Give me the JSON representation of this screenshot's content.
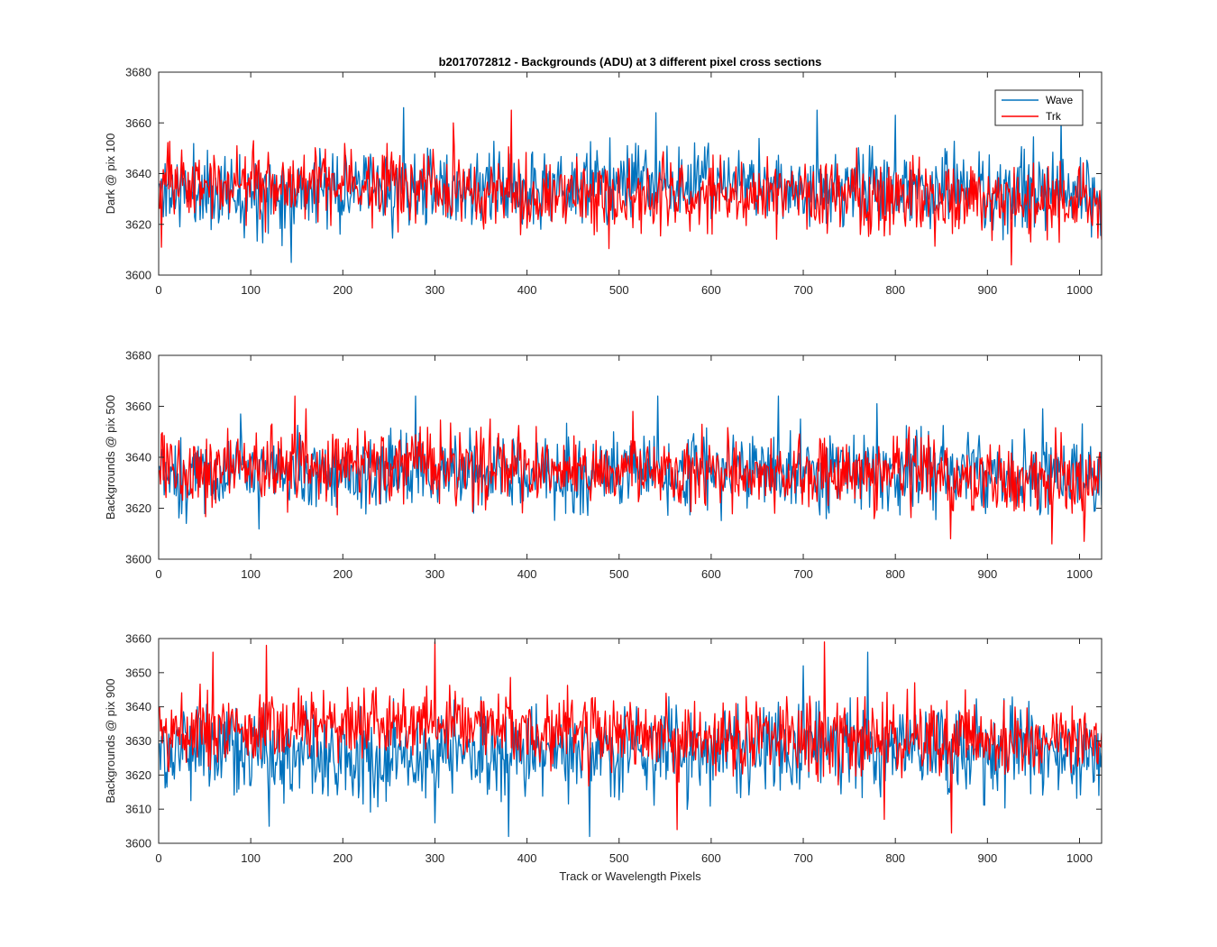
{
  "figure": {
    "title": "b2017072812 - Backgrounds (ADU) at 3 different pixel cross sections",
    "xlabel": "Track or Wavelength Pixels"
  },
  "colors": {
    "wave": "#0072BD",
    "trk": "#FF0000",
    "axis": "#262626",
    "background": "#FFFFFF"
  },
  "legend": {
    "placement": "top-right of first panel",
    "entries": [
      {
        "key": "wave",
        "label": "Wave"
      },
      {
        "key": "trk",
        "label": "Trk"
      }
    ]
  },
  "chart_data": [
    {
      "type": "line",
      "ylabel": "Dark @ pix 100",
      "xlim": [
        0,
        1024
      ],
      "ylim": [
        3600,
        3680
      ],
      "x_ticks": [
        0,
        100,
        200,
        300,
        400,
        500,
        600,
        700,
        800,
        900,
        1000
      ],
      "y_ticks": [
        3600,
        3620,
        3640,
        3660,
        3680
      ],
      "grid": false,
      "n_points": 1024,
      "series": [
        {
          "key": "wave",
          "name": "Wave",
          "trend": [
            [
              0,
              3633
            ],
            [
              200,
              3634
            ],
            [
              400,
              3633
            ],
            [
              500,
              3637
            ],
            [
              700,
              3635
            ],
            [
              900,
              3633
            ],
            [
              1024,
              3631
            ]
          ],
          "noise": 7.5,
          "seed": 11,
          "extremes": [
            [
              144,
              3605
            ],
            [
              266,
              3666
            ],
            [
              540,
              3664
            ],
            [
              715,
              3665
            ],
            [
              800,
              3663
            ],
            [
              1013,
              3615
            ],
            [
              980,
              3662
            ]
          ]
        },
        {
          "key": "trk",
          "name": "Trk",
          "trend": [
            [
              0,
              3637
            ],
            [
              300,
              3635
            ],
            [
              500,
              3631
            ],
            [
              700,
              3632
            ],
            [
              900,
              3629
            ],
            [
              1024,
              3627
            ]
          ],
          "noise": 7,
          "seed": 23,
          "extremes": [
            [
              3,
              3611
            ],
            [
              383,
              3665
            ],
            [
              320,
              3660
            ],
            [
              926,
              3604
            ],
            [
              260,
              3617
            ]
          ]
        }
      ]
    },
    {
      "type": "line",
      "ylabel": "Backgrounds @ pix 500",
      "xlim": [
        0,
        1024
      ],
      "ylim": [
        3600,
        3680
      ],
      "x_ticks": [
        0,
        100,
        200,
        300,
        400,
        500,
        600,
        700,
        800,
        900,
        1000
      ],
      "y_ticks": [
        3600,
        3620,
        3640,
        3660,
        3680
      ],
      "grid": false,
      "n_points": 1024,
      "series": [
        {
          "key": "wave",
          "name": "Wave",
          "trend": [
            [
              0,
              3633
            ],
            [
              300,
              3634
            ],
            [
              600,
              3635
            ],
            [
              800,
              3634
            ],
            [
              1024,
              3633
            ]
          ],
          "noise": 7.5,
          "seed": 37,
          "extremes": [
            [
              89,
              3657
            ],
            [
              279,
              3664
            ],
            [
              542,
              3664
            ],
            [
              673,
              3664
            ],
            [
              960,
              3659
            ],
            [
              780,
              3661
            ]
          ]
        },
        {
          "key": "trk",
          "name": "Trk",
          "trend": [
            [
              0,
              3636
            ],
            [
              300,
              3637
            ],
            [
              600,
              3634
            ],
            [
              800,
              3632
            ],
            [
              1024,
              3630
            ]
          ],
          "noise": 7,
          "seed": 53,
          "extremes": [
            [
              148,
              3664
            ],
            [
              160,
              3659
            ],
            [
              515,
              3658
            ],
            [
              970,
              3606
            ],
            [
              1005,
              3607
            ],
            [
              860,
              3608
            ]
          ]
        }
      ]
    },
    {
      "type": "line",
      "ylabel": "Backgrounds @ pix 900",
      "xlim": [
        0,
        1024
      ],
      "ylim": [
        3600,
        3660
      ],
      "x_ticks": [
        0,
        100,
        200,
        300,
        400,
        500,
        600,
        700,
        800,
        900,
        1000
      ],
      "y_ticks": [
        3600,
        3610,
        3620,
        3630,
        3640,
        3650,
        3660
      ],
      "grid": false,
      "n_points": 1024,
      "series": [
        {
          "key": "wave",
          "name": "Wave",
          "trend": [
            [
              0,
              3627
            ],
            [
              200,
              3626
            ],
            [
              500,
              3627
            ],
            [
              800,
              3628
            ],
            [
              1024,
              3626
            ]
          ],
          "noise": 6.5,
          "seed": 71,
          "extremes": [
            [
              380,
              3602
            ],
            [
              468,
              3602
            ],
            [
              120,
              3605
            ],
            [
              300,
              3606
            ],
            [
              770,
              3656
            ],
            [
              700,
              3652
            ]
          ]
        },
        {
          "key": "trk",
          "name": "Trk",
          "trend": [
            [
              0,
              3633
            ],
            [
              200,
              3636
            ],
            [
              400,
              3634
            ],
            [
              600,
              3631
            ],
            [
              800,
              3631
            ],
            [
              1024,
              3630
            ]
          ],
          "noise": 5.5,
          "seed": 89,
          "extremes": [
            [
              300,
              3659
            ],
            [
              723,
              3659
            ],
            [
              117,
              3658
            ],
            [
              59,
              3656
            ],
            [
              563,
              3604
            ],
            [
              861,
              3603
            ],
            [
              788,
              3607
            ]
          ]
        }
      ]
    }
  ]
}
